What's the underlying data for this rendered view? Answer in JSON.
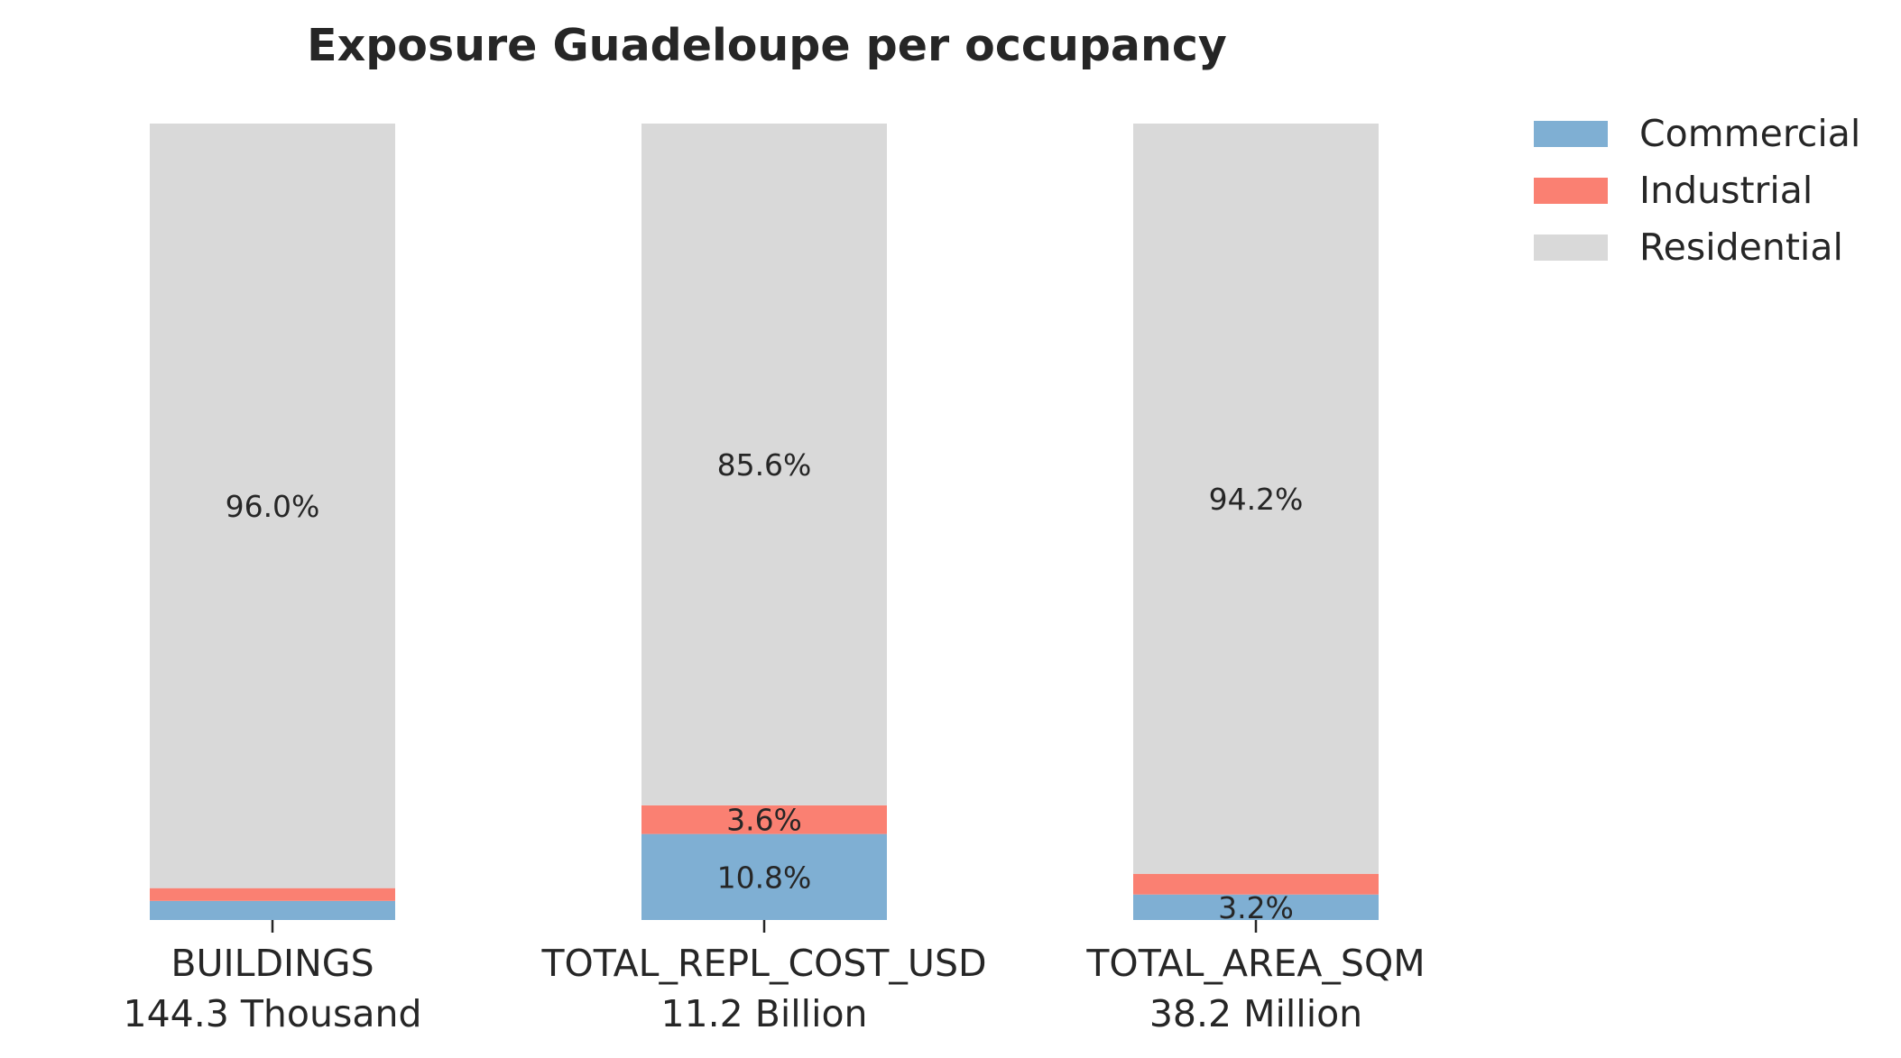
{
  "chart_data": {
    "type": "bar",
    "stacked": true,
    "normalized_percent": true,
    "title": "Exposure Guadeloupe per occupancy",
    "categories": [
      "BUILDINGS",
      "TOTAL_REPL_COST_USD",
      "TOTAL_AREA_SQM"
    ],
    "category_totals": [
      "144.3 Thousand",
      "11.2 Billion",
      "38.2 Million"
    ],
    "ylim": [
      0,
      100
    ],
    "grid": false,
    "legend_position": "top-right outside",
    "series": [
      {
        "name": "Commercial",
        "color": "#7FAFD3",
        "values": [
          2.4,
          10.8,
          3.2
        ],
        "labels": [
          "",
          "10.8%",
          "3.2%"
        ]
      },
      {
        "name": "Industrial",
        "color": "#FA8072",
        "values": [
          1.6,
          3.6,
          2.6
        ],
        "labels": [
          "",
          "3.6%",
          ""
        ]
      },
      {
        "name": "Residential",
        "color": "#D9D9D9",
        "values": [
          96.0,
          85.6,
          94.2
        ],
        "labels": [
          "96.0%",
          "85.6%",
          "94.2%"
        ]
      }
    ]
  }
}
